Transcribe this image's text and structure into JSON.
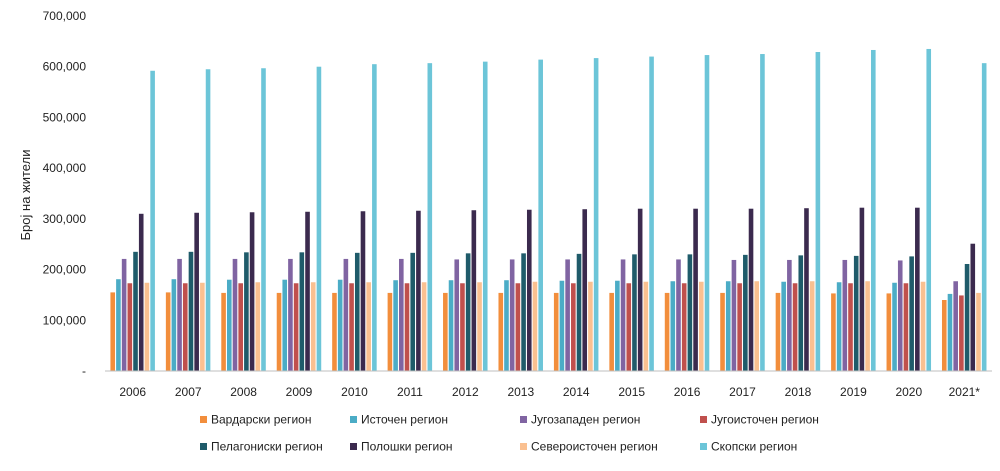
{
  "chart_data": {
    "type": "bar",
    "title": "",
    "xlabel": "",
    "ylabel": "Број на жители",
    "ylim": [
      0,
      700000
    ],
    "yticks": [
      "-",
      "100,000",
      "200,000",
      "300,000",
      "400,000",
      "500,000",
      "600,000",
      "700,000"
    ],
    "grid": false,
    "legend_position": "bottom",
    "categories": [
      "2006",
      "2007",
      "2008",
      "2009",
      "2010",
      "2011",
      "2012",
      "2013",
      "2014",
      "2015",
      "2016",
      "2017",
      "2018",
      "2019",
      "2020",
      "2021*"
    ],
    "series": [
      {
        "name": "Вардарски регион",
        "color": "#f28e3c",
        "values": [
          155000,
          155000,
          154000,
          154000,
          154000,
          154000,
          154000,
          154000,
          154000,
          154000,
          154000,
          154000,
          154000,
          153000,
          153000,
          140000
        ]
      },
      {
        "name": "Источен регион",
        "color": "#4bacc6",
        "values": [
          181000,
          181000,
          180000,
          180000,
          180000,
          179000,
          179000,
          179000,
          178000,
          178000,
          177000,
          177000,
          176000,
          175000,
          174000,
          152000
        ]
      },
      {
        "name": "Југозападен регион",
        "color": "#8064a2",
        "values": [
          221000,
          221000,
          221000,
          221000,
          221000,
          221000,
          220000,
          220000,
          220000,
          220000,
          220000,
          219000,
          219000,
          219000,
          218000,
          177000
        ]
      },
      {
        "name": "Југоисточен регион",
        "color": "#c0504d",
        "values": [
          173000,
          173000,
          173000,
          173000,
          173000,
          173000,
          173000,
          173000,
          173000,
          173000,
          173000,
          173000,
          173000,
          173000,
          173000,
          149000
        ]
      },
      {
        "name": "Пелагониски регион",
        "color": "#1f5b6a",
        "values": [
          235000,
          235000,
          234000,
          234000,
          233000,
          233000,
          232000,
          232000,
          231000,
          230000,
          230000,
          229000,
          228000,
          227000,
          226000,
          211000
        ]
      },
      {
        "name": "Полошки регион",
        "color": "#3b2a4e",
        "values": [
          310000,
          312000,
          313000,
          314000,
          315000,
          316000,
          317000,
          318000,
          319000,
          320000,
          320000,
          320000,
          321000,
          322000,
          322000,
          251000
        ]
      },
      {
        "name": "Североисточен регион",
        "color": "#fac090",
        "values": [
          174000,
          174000,
          175000,
          175000,
          175000,
          175000,
          175000,
          176000,
          176000,
          176000,
          176000,
          177000,
          177000,
          177000,
          176000,
          154000
        ]
      },
      {
        "name": "Скопски регион",
        "color": "#6cc5d8",
        "values": [
          592000,
          595000,
          597000,
          600000,
          605000,
          607000,
          610000,
          614000,
          617000,
          620000,
          623000,
          625000,
          629000,
          633000,
          635000,
          607000
        ]
      }
    ]
  }
}
